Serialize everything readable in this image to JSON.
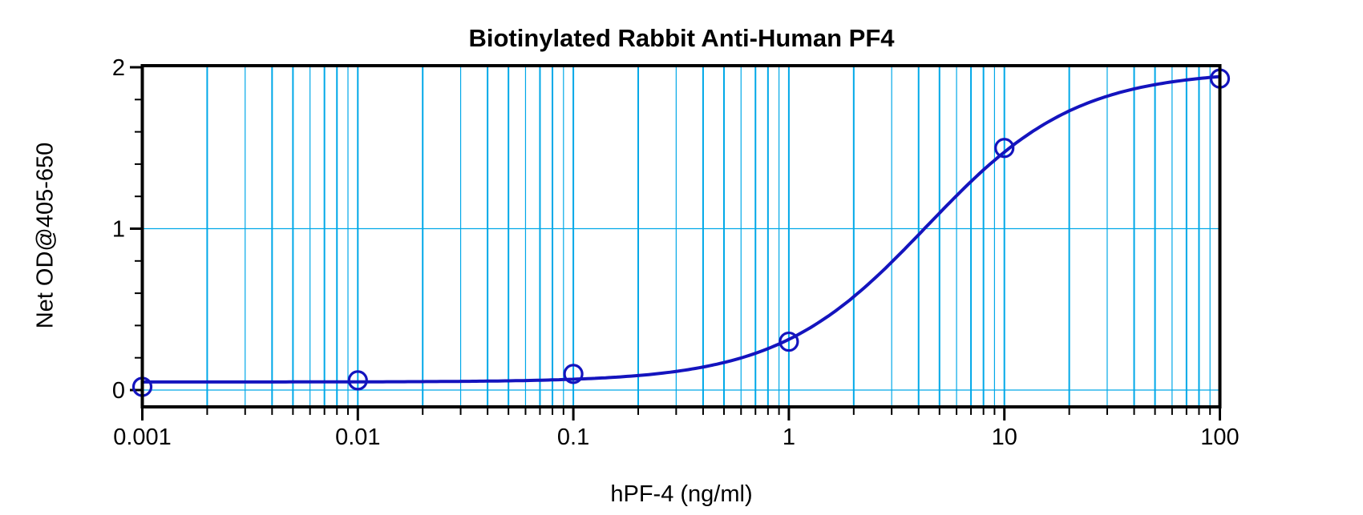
{
  "chart_data": {
    "type": "scatter",
    "title": "Biotinylated Rabbit Anti-Human PF4",
    "xlabel": "hPF-4 (ng/ml)",
    "ylabel": "Net OD@405-650",
    "x_scale": "log10",
    "xlim": [
      0.001,
      100
    ],
    "ylim": [
      -0.1,
      2
    ],
    "x": [
      0.001,
      0.01,
      0.1,
      1,
      10,
      100
    ],
    "y": [
      0.02,
      0.06,
      0.1,
      0.3,
      1.5,
      1.93
    ],
    "x_tick_labels": [
      "0.001",
      "0.01",
      "0.1",
      "1",
      "10",
      "100"
    ],
    "x_tick_values": [
      0.001,
      0.01,
      0.1,
      1,
      10,
      100
    ],
    "y_tick_labels": [
      "0",
      "1",
      "2"
    ],
    "y_tick_values": [
      0,
      1,
      2
    ],
    "y_minor_tick_step": 0.2,
    "grid": {
      "vertical": "log decades plus mantissas 2-9",
      "horizontal": "at y = 0 and y = 1",
      "on": true
    },
    "legend": "none",
    "marker_style": "open-circle",
    "fit_curve": {
      "model": "logistic in log10(x)",
      "base": 0.05,
      "top": 1.98,
      "log_ec50": 0.64,
      "hill": 1.25
    },
    "colors": {
      "curve": "#1414BE",
      "marker": "#1414BE",
      "grid": "#00A8E8",
      "axis": "#000000",
      "text": "#000000",
      "background": "#FFFFFF"
    }
  }
}
